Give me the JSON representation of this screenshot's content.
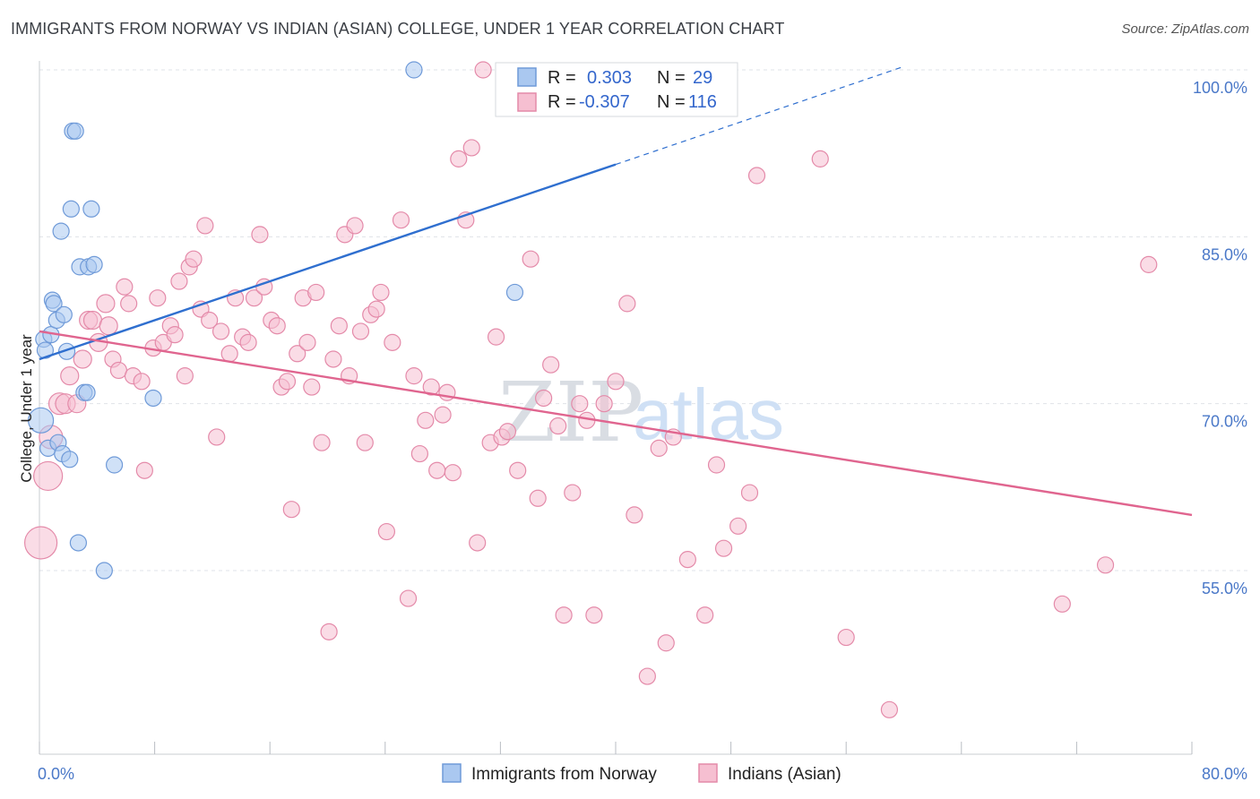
{
  "title": "IMMIGRANTS FROM NORWAY VS INDIAN (ASIAN) COLLEGE, UNDER 1 YEAR CORRELATION CHART",
  "source": "Source: ZipAtlas.com",
  "watermark": {
    "zip": "ZIP",
    "atlas": "atlas"
  },
  "colors": {
    "blue_fill": "#aac8f0",
    "blue_stroke": "#6f9ad8",
    "blue_line": "#2f6fcf",
    "pink_fill": "#f6bfd1",
    "pink_stroke": "#e48aa9",
    "pink_line": "#e0658f",
    "tick_text": "#4a78c8",
    "grid": "#dfe3e8"
  },
  "legend": {
    "rows": [
      {
        "r_label": "R =",
        "r_value": "0.303",
        "n_label": "N =",
        "n_value": "29"
      },
      {
        "r_label": "R =",
        "r_value": "-0.307",
        "n_label": "N =",
        "n_value": "116"
      }
    ]
  },
  "chart_data": {
    "type": "scatter",
    "title": "IMMIGRANTS FROM NORWAY VS INDIAN (ASIAN) COLLEGE, UNDER 1 YEAR CORRELATION CHART",
    "xlabel": "",
    "ylabel": "College, Under 1 year",
    "xlim": [
      0,
      80
    ],
    "ylim": [
      38.5,
      100
    ],
    "x_tick_labels": [
      "0.0%",
      "80.0%"
    ],
    "y_ticks": [
      55,
      70,
      85,
      100
    ],
    "y_tick_labels": [
      "55.0%",
      "70.0%",
      "85.0%",
      "100.0%"
    ],
    "grid": true,
    "legend_position": "top-center",
    "series": [
      {
        "name": "Immigrants from Norway",
        "color": "#aac8f0",
        "points": [
          [
            0.1,
            68.5,
            14
          ],
          [
            0.3,
            75.8,
            9
          ],
          [
            0.4,
            74.8,
            9
          ],
          [
            0.6,
            66.0,
            9
          ],
          [
            0.8,
            76.2,
            9
          ],
          [
            0.9,
            79.3,
            9
          ],
          [
            1.0,
            79.0,
            9
          ],
          [
            1.2,
            77.5,
            9
          ],
          [
            1.3,
            66.5,
            9
          ],
          [
            1.5,
            85.5,
            9
          ],
          [
            1.6,
            65.5,
            9
          ],
          [
            1.7,
            78.0,
            9
          ],
          [
            1.9,
            74.7,
            9
          ],
          [
            2.1,
            65.0,
            9
          ],
          [
            2.2,
            87.5,
            9
          ],
          [
            2.3,
            94.5,
            9
          ],
          [
            2.5,
            94.5,
            9
          ],
          [
            2.7,
            57.5,
            9
          ],
          [
            2.8,
            82.3,
            9
          ],
          [
            3.1,
            71.0,
            9
          ],
          [
            3.3,
            71.0,
            9
          ],
          [
            3.4,
            82.3,
            9
          ],
          [
            3.6,
            87.5,
            9
          ],
          [
            3.8,
            82.5,
            9
          ],
          [
            4.5,
            55.0,
            9
          ],
          [
            5.2,
            64.5,
            9
          ],
          [
            7.9,
            70.5,
            9
          ],
          [
            26.0,
            100.0,
            9
          ],
          [
            33.0,
            80.0,
            9
          ]
        ],
        "trend": {
          "x_start": 0,
          "y_start": 74.0,
          "x_solid_end": 40,
          "y_solid_end": 91.5,
          "x_dash_end": 60,
          "y_dash_end": 100.3
        }
      },
      {
        "name": "Indians (Asian)",
        "color": "#f6bfd1",
        "points": [
          [
            0.1,
            57.5,
            18
          ],
          [
            0.6,
            63.5,
            16
          ],
          [
            0.8,
            67.0,
            13
          ],
          [
            1.4,
            70.0,
            12
          ],
          [
            1.8,
            70.0,
            11
          ],
          [
            2.1,
            72.5,
            10
          ],
          [
            2.6,
            70.0,
            10
          ],
          [
            3.0,
            74.0,
            10
          ],
          [
            3.4,
            77.5,
            10
          ],
          [
            3.7,
            77.5,
            10
          ],
          [
            4.1,
            75.5,
            10
          ],
          [
            4.6,
            79.0,
            10
          ],
          [
            4.8,
            77.0,
            10
          ],
          [
            5.1,
            74.0,
            9
          ],
          [
            5.5,
            73.0,
            9
          ],
          [
            5.9,
            80.5,
            9
          ],
          [
            6.2,
            79.0,
            9
          ],
          [
            6.5,
            72.5,
            9
          ],
          [
            7.1,
            72.0,
            9
          ],
          [
            7.3,
            64.0,
            9
          ],
          [
            7.9,
            75.0,
            9
          ],
          [
            8.2,
            79.5,
            9
          ],
          [
            8.6,
            75.5,
            9
          ],
          [
            9.1,
            77.0,
            9
          ],
          [
            9.4,
            76.2,
            9
          ],
          [
            9.7,
            81.0,
            9
          ],
          [
            10.1,
            72.5,
            9
          ],
          [
            10.4,
            82.3,
            9
          ],
          [
            10.7,
            83.0,
            9
          ],
          [
            11.2,
            78.5,
            9
          ],
          [
            11.5,
            86.0,
            9
          ],
          [
            11.8,
            77.5,
            9
          ],
          [
            12.3,
            67.0,
            9
          ],
          [
            12.6,
            76.5,
            9
          ],
          [
            13.2,
            74.5,
            9
          ],
          [
            13.6,
            79.5,
            9
          ],
          [
            14.1,
            76.0,
            9
          ],
          [
            14.5,
            75.5,
            9
          ],
          [
            14.9,
            79.5,
            9
          ],
          [
            15.3,
            85.2,
            9
          ],
          [
            15.6,
            80.5,
            9
          ],
          [
            16.1,
            77.5,
            9
          ],
          [
            16.5,
            77.0,
            9
          ],
          [
            16.8,
            71.5,
            9
          ],
          [
            17.2,
            72.0,
            9
          ],
          [
            17.5,
            60.5,
            9
          ],
          [
            17.9,
            74.5,
            9
          ],
          [
            18.3,
            79.5,
            9
          ],
          [
            18.6,
            75.5,
            9
          ],
          [
            18.9,
            71.5,
            9
          ],
          [
            19.2,
            80.0,
            9
          ],
          [
            19.6,
            66.5,
            9
          ],
          [
            20.1,
            49.5,
            9
          ],
          [
            20.4,
            74.0,
            9
          ],
          [
            20.8,
            77.0,
            9
          ],
          [
            21.2,
            85.2,
            9
          ],
          [
            21.5,
            72.5,
            9
          ],
          [
            21.9,
            86.0,
            9
          ],
          [
            22.3,
            76.5,
            9
          ],
          [
            22.6,
            66.5,
            9
          ],
          [
            23.0,
            78.0,
            9
          ],
          [
            23.4,
            78.5,
            9
          ],
          [
            23.7,
            80.0,
            9
          ],
          [
            24.1,
            58.5,
            9
          ],
          [
            24.5,
            75.5,
            9
          ],
          [
            25.1,
            86.5,
            9
          ],
          [
            25.6,
            52.5,
            9
          ],
          [
            26.0,
            72.5,
            9
          ],
          [
            26.4,
            65.5,
            9
          ],
          [
            26.8,
            68.5,
            9
          ],
          [
            27.2,
            71.5,
            9
          ],
          [
            27.6,
            64.0,
            9
          ],
          [
            28.0,
            69.0,
            9
          ],
          [
            28.3,
            71.0,
            9
          ],
          [
            28.7,
            63.8,
            9
          ],
          [
            29.1,
            92.0,
            9
          ],
          [
            29.6,
            86.5,
            9
          ],
          [
            30.0,
            93.0,
            9
          ],
          [
            30.4,
            57.5,
            9
          ],
          [
            30.8,
            100.0,
            9
          ],
          [
            31.3,
            66.5,
            9
          ],
          [
            31.7,
            76.0,
            9
          ],
          [
            32.1,
            67.0,
            9
          ],
          [
            32.5,
            67.5,
            9
          ],
          [
            33.2,
            64.0,
            9
          ],
          [
            34.1,
            83.0,
            9
          ],
          [
            34.6,
            61.5,
            9
          ],
          [
            35.0,
            70.5,
            9
          ],
          [
            35.5,
            73.5,
            9
          ],
          [
            36.0,
            68.0,
            9
          ],
          [
            36.4,
            51.0,
            9
          ],
          [
            37.0,
            62.0,
            9
          ],
          [
            37.5,
            70.0,
            9
          ],
          [
            38.0,
            68.5,
            9
          ],
          [
            38.5,
            51.0,
            9
          ],
          [
            39.2,
            70.0,
            9
          ],
          [
            40.0,
            72.0,
            9
          ],
          [
            40.8,
            79.0,
            9
          ],
          [
            41.3,
            60.0,
            9
          ],
          [
            42.2,
            45.5,
            9
          ],
          [
            43.0,
            66.0,
            9
          ],
          [
            43.5,
            48.5,
            9
          ],
          [
            44.0,
            67.0,
            9
          ],
          [
            45.0,
            56.0,
            9
          ],
          [
            46.2,
            51.0,
            9
          ],
          [
            47.0,
            64.5,
            9
          ],
          [
            47.5,
            57.0,
            9
          ],
          [
            48.5,
            59.0,
            9
          ],
          [
            49.3,
            62.0,
            9
          ],
          [
            49.8,
            90.5,
            9
          ],
          [
            54.2,
            92.0,
            9
          ],
          [
            56.0,
            49.0,
            9
          ],
          [
            59.0,
            42.5,
            9
          ],
          [
            71.0,
            52.0,
            9
          ],
          [
            77.0,
            82.5,
            9
          ],
          [
            74.0,
            55.5,
            9
          ]
        ],
        "trend": {
          "x_start": 0,
          "y_start": 76.5,
          "x_end": 80,
          "y_end": 60.0
        }
      }
    ]
  }
}
